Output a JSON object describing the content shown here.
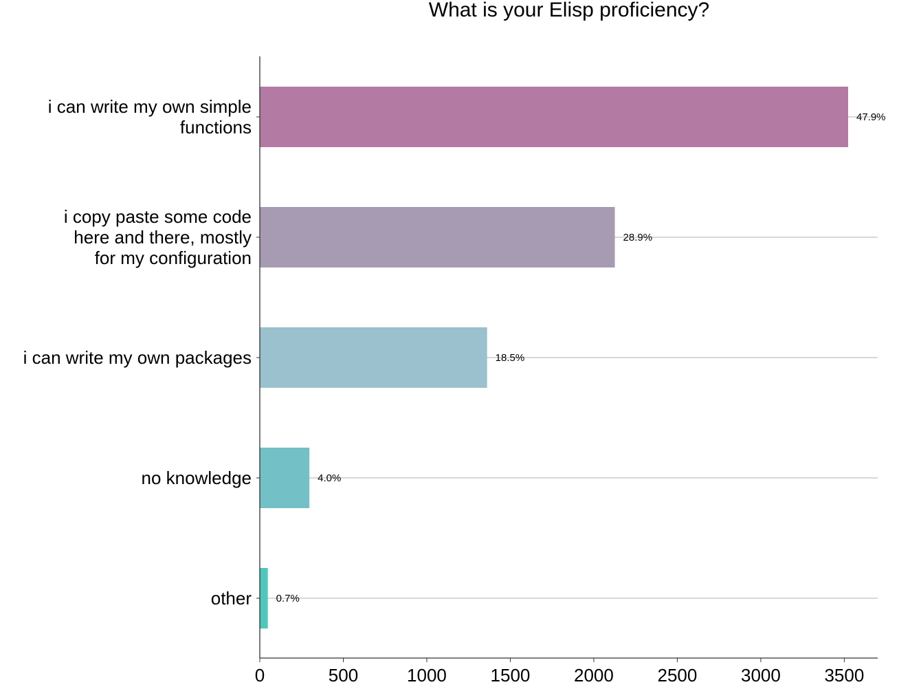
{
  "chart_data": {
    "type": "bar",
    "orientation": "horizontal",
    "title": "What is your Elisp proficiency?",
    "xlabel": "",
    "ylabel": "",
    "xlim": [
      0,
      3700
    ],
    "x_ticks": [
      0,
      500,
      1000,
      1500,
      2000,
      2500,
      3000,
      3500
    ],
    "grid": "horizontal lines at category centers",
    "categories": [
      [
        "i can write my own simple",
        "functions"
      ],
      [
        "i copy paste some code",
        "here and there, mostly",
        "for my configuration"
      ],
      [
        "i can write my own packages"
      ],
      [
        "no knowledge"
      ],
      [
        "other"
      ]
    ],
    "values": [
      3523,
      2126,
      1361,
      297,
      48
    ],
    "percent_labels": [
      "47.9%",
      "28.9%",
      "18.5%",
      "4.0%",
      "0.7%"
    ],
    "colors": [
      "#b37aa4",
      "#a79ab3",
      "#9ac1cd",
      "#73c0c6",
      "#4ec8bc"
    ]
  }
}
